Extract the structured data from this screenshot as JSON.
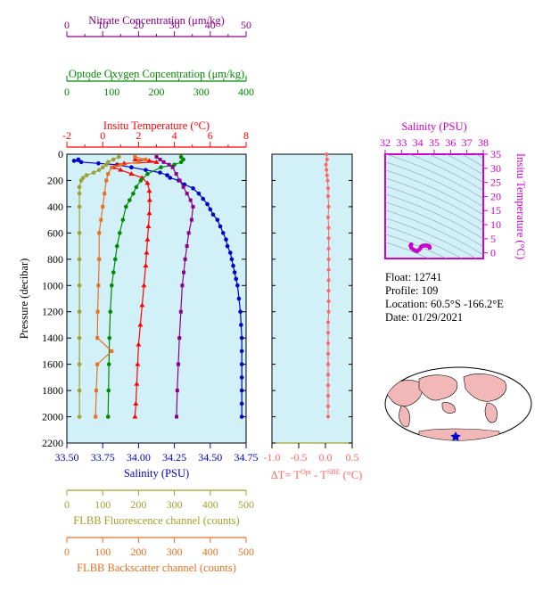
{
  "colors": {
    "nitrate": "#8b008b",
    "oxygen": "#008b00",
    "temperature": "#ff0000",
    "salinity": "#0000cd",
    "fluorescence": "#a0a030",
    "backscatter": "#e87020",
    "delta_t": "#ff6666",
    "ts_axis": "#cc00cc",
    "panel_bg": "#d2f0f8"
  },
  "info": {
    "float_line": "Float:  12741",
    "profile_line": "Profile:  109",
    "location_line": "Location:  60.5°S  -166.2°E",
    "date_line": "Date:  01/29/2021"
  },
  "chart_data": [
    {
      "type": "line",
      "panel": "main-profiles",
      "ylabel": "Pressure (decibar)",
      "ylim": [
        2200,
        0
      ],
      "y_ticks": [
        0,
        200,
        400,
        600,
        800,
        1000,
        1200,
        1400,
        1600,
        1800,
        2000,
        2200
      ],
      "axes": {
        "nitrate": {
          "label": "Nitrate Concentration (μm/kg)",
          "lim": [
            0,
            50
          ],
          "ticks": [
            0,
            10,
            20,
            30,
            40,
            50
          ]
        },
        "oxygen": {
          "label": "Optode Oxygen Concentration (μm/kg)",
          "lim": [
            0,
            400
          ],
          "ticks": [
            0,
            100,
            200,
            300,
            400
          ]
        },
        "temperature": {
          "label": "Insitu Temperature (°C)",
          "lim": [
            -2,
            8
          ],
          "ticks": [
            -2,
            0,
            2,
            4,
            6,
            8
          ]
        },
        "salinity": {
          "label": "Salinity (PSU)",
          "lim": [
            33.5,
            34.75
          ],
          "ticks": [
            "33.50",
            "33.75",
            "34.00",
            "34.25",
            "34.50",
            "34.75"
          ]
        },
        "fluorescence": {
          "label": "FLBB Fluorescence channel (counts)",
          "lim": [
            0,
            500
          ],
          "ticks": [
            0,
            100,
            200,
            300,
            400,
            500
          ]
        },
        "backscatter": {
          "label": "FLBB Backscatter channel (counts)",
          "lim": [
            0,
            500
          ],
          "ticks": [
            0,
            100,
            200,
            300,
            400,
            500
          ]
        }
      },
      "series": [
        {
          "axis": "salinity",
          "marker": "circle",
          "points": [
            [
              33.58,
              40
            ],
            [
              33.55,
              50
            ],
            [
              33.6,
              60
            ],
            [
              33.72,
              70
            ],
            [
              33.85,
              80
            ],
            [
              33.95,
              100
            ],
            [
              34.05,
              120
            ],
            [
              34.15,
              140
            ],
            [
              34.2,
              160
            ],
            [
              34.22,
              180
            ],
            [
              34.28,
              200
            ],
            [
              34.32,
              230
            ],
            [
              34.38,
              260
            ],
            [
              34.42,
              300
            ],
            [
              34.45,
              340
            ],
            [
              34.48,
              380
            ],
            [
              34.5,
              420
            ],
            [
              34.52,
              460
            ],
            [
              34.55,
              500
            ],
            [
              34.57,
              550
            ],
            [
              34.59,
              600
            ],
            [
              34.61,
              650
            ],
            [
              34.62,
              700
            ],
            [
              34.64,
              750
            ],
            [
              34.65,
              800
            ],
            [
              34.66,
              850
            ],
            [
              34.67,
              900
            ],
            [
              34.68,
              950
            ],
            [
              34.69,
              1000
            ],
            [
              34.7,
              1100
            ],
            [
              34.71,
              1200
            ],
            [
              34.715,
              1300
            ],
            [
              34.72,
              1400
            ],
            [
              34.72,
              1500
            ],
            [
              34.72,
              1600
            ],
            [
              34.72,
              1700
            ],
            [
              34.72,
              1800
            ],
            [
              34.72,
              1900
            ],
            [
              34.72,
              2000
            ]
          ]
        },
        {
          "axis": "temperature",
          "marker": "triangle",
          "points": [
            [
              1.8,
              40
            ],
            [
              2.6,
              50
            ],
            [
              3.0,
              60
            ],
            [
              1.2,
              70
            ],
            [
              0.8,
              80
            ],
            [
              0.6,
              100
            ],
            [
              1.0,
              120
            ],
            [
              1.6,
              150
            ],
            [
              2.2,
              180
            ],
            [
              2.5,
              220
            ],
            [
              2.6,
              280
            ],
            [
              2.62,
              350
            ],
            [
              2.6,
              450
            ],
            [
              2.55,
              550
            ],
            [
              2.5,
              650
            ],
            [
              2.45,
              750
            ],
            [
              2.4,
              850
            ],
            [
              2.3,
              1000
            ],
            [
              2.2,
              1150
            ],
            [
              2.1,
              1300
            ],
            [
              2.0,
              1450
            ],
            [
              1.95,
              1600
            ],
            [
              1.9,
              1750
            ],
            [
              1.85,
              1900
            ],
            [
              1.8,
              2000
            ]
          ]
        },
        {
          "axis": "oxygen",
          "marker": "circle",
          "points": [
            [
              255,
              20
            ],
            [
              260,
              40
            ],
            [
              255,
              60
            ],
            [
              240,
              80
            ],
            [
              210,
              100
            ],
            [
              180,
              150
            ],
            [
              165,
              200
            ],
            [
              155,
              250
            ],
            [
              148,
              300
            ],
            [
              140,
              350
            ],
            [
              132,
              400
            ],
            [
              125,
              500
            ],
            [
              118,
              600
            ],
            [
              112,
              700
            ],
            [
              108,
              800
            ],
            [
              104,
              900
            ],
            [
              100,
              1000
            ],
            [
              97,
              1200
            ],
            [
              95,
              1400
            ],
            [
              94,
              1600
            ],
            [
              93,
              1800
            ],
            [
              92,
              2000
            ]
          ]
        },
        {
          "axis": "nitrate",
          "marker": "square",
          "points": [
            [
              25,
              20
            ],
            [
              26,
              40
            ],
            [
              27,
              60
            ],
            [
              28.5,
              80
            ],
            [
              29.5,
              100
            ],
            [
              30.5,
              150
            ],
            [
              31.5,
              200
            ],
            [
              32.5,
              250
            ],
            [
              33.5,
              300
            ],
            [
              34.5,
              350
            ],
            [
              35.2,
              400
            ],
            [
              34.8,
              500
            ],
            [
              34,
              600
            ],
            [
              33.5,
              700
            ],
            [
              33,
              800
            ],
            [
              32.6,
              900
            ],
            [
              32.2,
              1000
            ],
            [
              31.8,
              1200
            ],
            [
              31.4,
              1400
            ],
            [
              31.1,
              1600
            ],
            [
              30.8,
              1800
            ],
            [
              30.6,
              2000
            ]
          ]
        },
        {
          "axis": "fluorescence",
          "marker": "circle",
          "points": [
            [
              145,
              20
            ],
            [
              130,
              40
            ],
            [
              115,
              60
            ],
            [
              110,
              80
            ],
            [
              100,
              100
            ],
            [
              90,
              120
            ],
            [
              75,
              140
            ],
            [
              55,
              160
            ],
            [
              45,
              180
            ],
            [
              40,
              200
            ],
            [
              35,
              250
            ],
            [
              35,
              300
            ],
            [
              35,
              400
            ],
            [
              35,
              600
            ],
            [
              35,
              800
            ],
            [
              35,
              1000
            ],
            [
              35,
              1200
            ],
            [
              35,
              1400
            ],
            [
              35,
              1600
            ],
            [
              35,
              1800
            ],
            [
              35,
              2000
            ]
          ]
        },
        {
          "axis": "backscatter",
          "marker": "square",
          "points": [
            [
              190,
              20
            ],
            [
              220,
              40
            ],
            [
              200,
              60
            ],
            [
              150,
              80
            ],
            [
              125,
              100
            ],
            [
              115,
              150
            ],
            [
              110,
              200
            ],
            [
              105,
              300
            ],
            [
              100,
              400
            ],
            [
              95,
              500
            ],
            [
              90,
              600
            ],
            [
              90,
              800
            ],
            [
              88,
              1000
            ],
            [
              86,
              1200
            ],
            [
              85,
              1400
            ],
            [
              125,
              1500
            ],
            [
              85,
              1600
            ],
            [
              82,
              1800
            ],
            [
              80,
              2000
            ]
          ]
        }
      ]
    },
    {
      "type": "scatter",
      "panel": "delta-t",
      "xlabel": "ΔT= T^Opt - T^SBE (°C)",
      "xlim": [
        -1.0,
        0.5
      ],
      "x_ticks": [
        "-1.0",
        "-0.5",
        "0.0",
        "0.5"
      ],
      "ylim": [
        2200,
        0
      ],
      "points": [
        [
          0.02,
          0
        ],
        [
          0.03,
          40
        ],
        [
          0.01,
          80
        ],
        [
          0.02,
          120
        ],
        [
          0.03,
          160
        ],
        [
          0.04,
          200
        ],
        [
          0.05,
          260
        ],
        [
          0.05,
          320
        ],
        [
          0.06,
          400
        ],
        [
          0.05,
          480
        ],
        [
          0.06,
          560
        ],
        [
          0.06,
          640
        ],
        [
          0.06,
          720
        ],
        [
          0.06,
          800
        ],
        [
          0.06,
          880
        ],
        [
          0.06,
          960
        ],
        [
          0.06,
          1040
        ],
        [
          0.06,
          1120
        ],
        [
          0.06,
          1200
        ],
        [
          0.05,
          1280
        ],
        [
          0.05,
          1360
        ],
        [
          0.05,
          1440
        ],
        [
          0.05,
          1520
        ],
        [
          0.05,
          1600
        ],
        [
          0.05,
          1680
        ],
        [
          0.05,
          1760
        ],
        [
          0.05,
          1840
        ],
        [
          0.05,
          1920
        ],
        [
          0.05,
          2000
        ]
      ]
    },
    {
      "type": "scatter",
      "panel": "ts-diagram",
      "xlabel": "Salinity (PSU)",
      "ylabel": "Insitu Temperature (°C)",
      "xlim": [
        32,
        38
      ],
      "ylim": [
        -2,
        35
      ],
      "x_ticks": [
        32,
        33,
        34,
        35,
        36,
        37,
        38
      ],
      "y_ticks": [
        0,
        5,
        10,
        15,
        20,
        25,
        30,
        35
      ],
      "points": [
        [
          33.6,
          1.8
        ],
        [
          33.55,
          2.6
        ],
        [
          33.6,
          3.0
        ],
        [
          33.72,
          1.2
        ],
        [
          33.85,
          0.8
        ],
        [
          33.95,
          0.6
        ],
        [
          34.05,
          1.0
        ],
        [
          34.15,
          1.6
        ],
        [
          34.2,
          2.2
        ],
        [
          34.28,
          2.5
        ],
        [
          34.38,
          2.6
        ],
        [
          34.45,
          2.62
        ],
        [
          34.52,
          2.6
        ],
        [
          34.57,
          2.55
        ],
        [
          34.62,
          2.5
        ],
        [
          34.65,
          2.45
        ],
        [
          34.67,
          2.4
        ],
        [
          34.69,
          2.3
        ],
        [
          34.7,
          2.2
        ],
        [
          34.71,
          2.1
        ],
        [
          34.72,
          2.0
        ],
        [
          34.72,
          1.9
        ],
        [
          34.72,
          1.8
        ]
      ]
    }
  ]
}
